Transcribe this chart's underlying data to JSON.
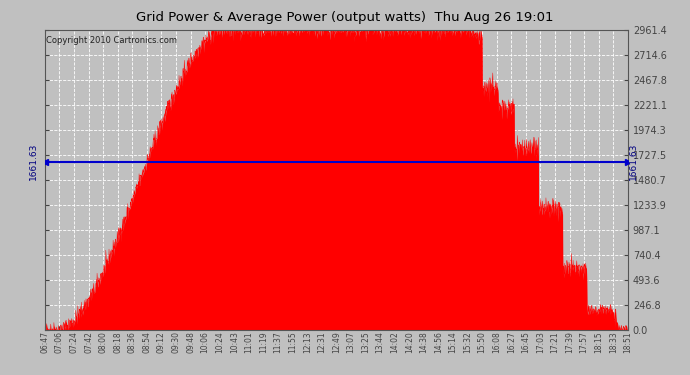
{
  "title": "Grid Power & Average Power (output watts)  Thu Aug 26 19:01",
  "copyright": "Copyright 2010 Cartronics.com",
  "avg_power": 1661.63,
  "y_ticks": [
    0.0,
    246.8,
    493.6,
    740.4,
    987.1,
    1233.9,
    1480.7,
    1727.5,
    1974.3,
    2221.1,
    2467.8,
    2714.6,
    2961.4
  ],
  "bg_color": "#c0c0c0",
  "plot_bg_color": "#c0c0c0",
  "fill_color": "#ff0000",
  "line_color": "#0000cc",
  "grid_color": "#ffffff",
  "title_color": "#000000",
  "x_labels": [
    "06:47",
    "07:06",
    "07:24",
    "07:42",
    "08:00",
    "08:18",
    "08:36",
    "08:54",
    "09:12",
    "09:30",
    "09:48",
    "10:06",
    "10:24",
    "10:43",
    "11:01",
    "11:19",
    "11:37",
    "11:55",
    "12:13",
    "12:31",
    "12:49",
    "13:07",
    "13:25",
    "13:44",
    "14:02",
    "14:20",
    "14:38",
    "14:56",
    "15:14",
    "15:32",
    "15:50",
    "16:08",
    "16:27",
    "16:45",
    "17:03",
    "17:21",
    "17:39",
    "17:57",
    "18:15",
    "18:33",
    "18:51"
  ],
  "figsize": [
    6.9,
    3.75
  ],
  "dpi": 100
}
